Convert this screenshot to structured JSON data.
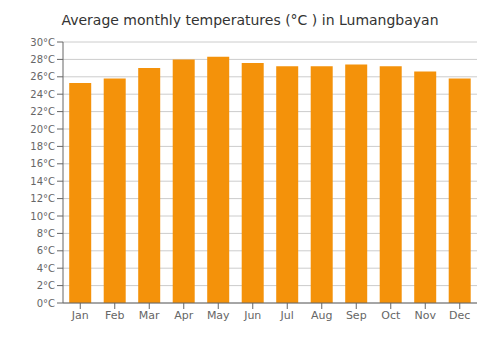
{
  "chart_data": {
    "type": "bar",
    "title": "Average monthly temperatures (°C ) in Lumangbayan",
    "categories": [
      "Jan",
      "Feb",
      "Mar",
      "Apr",
      "May",
      "Jun",
      "Jul",
      "Aug",
      "Sep",
      "Oct",
      "Nov",
      "Dec"
    ],
    "values": [
      25.3,
      25.8,
      27.0,
      28.0,
      28.3,
      27.6,
      27.2,
      27.2,
      27.4,
      27.2,
      26.6,
      25.8
    ],
    "color": "#F4920A",
    "ylim": [
      0,
      30
    ],
    "yticks": [
      {
        "value": 0,
        "label": "0°C"
      },
      {
        "value": 2,
        "label": "2°C"
      },
      {
        "value": 4,
        "label": "4°C"
      },
      {
        "value": 6,
        "label": "6°C"
      },
      {
        "value": 8,
        "label": "8°C"
      },
      {
        "value": 10,
        "label": "10°C"
      },
      {
        "value": 12,
        "label": "12°C"
      },
      {
        "value": 14,
        "label": "14°C"
      },
      {
        "value": 16,
        "label": "16°C"
      },
      {
        "value": 18,
        "label": "18°C"
      },
      {
        "value": 20,
        "label": "20°C"
      },
      {
        "value": 22,
        "label": "22°C"
      },
      {
        "value": 24,
        "label": "24°C"
      },
      {
        "value": 26,
        "label": "26°C"
      },
      {
        "value": 28,
        "label": "28°C"
      },
      {
        "value": 30,
        "label": "30°C"
      }
    ],
    "grid": true
  }
}
